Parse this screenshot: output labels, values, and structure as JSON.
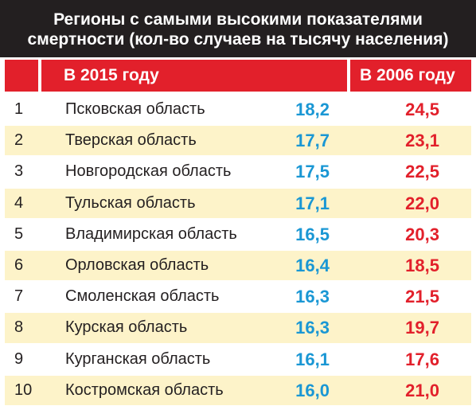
{
  "title": {
    "line1": "Регионы с самыми высокими показателями",
    "line2": "смертности (кол-во случаев на тысячу населения)"
  },
  "colors": {
    "title_bg": "#231f20",
    "header_bg": "#e2202b",
    "row_shade": "#fdf3c9",
    "value_2015": "#1a97d4",
    "value_2006": "#e2202b"
  },
  "chart_data": {
    "type": "table",
    "title": "Регионы с самыми высокими показателями смертности (кол-во случаев на тысячу населения)",
    "columns": [
      "",
      "В 2015 году",
      "В 2006 году"
    ],
    "rows": [
      {
        "rank": "1",
        "region": "Псковская область",
        "v2015": "18,2",
        "v2006": "24,5"
      },
      {
        "rank": "2",
        "region": "Тверская область",
        "v2015": "17,7",
        "v2006": "23,1"
      },
      {
        "rank": "3",
        "region": "Новгородская область",
        "v2015": "17,5",
        "v2006": "22,5"
      },
      {
        "rank": "4",
        "region": "Тульская область",
        "v2015": "17,1",
        "v2006": "22,0"
      },
      {
        "rank": "5",
        "region": "Владимирская область",
        "v2015": "16,5",
        "v2006": "20,3"
      },
      {
        "rank": "6",
        "region": "Орловская область",
        "v2015": "16,4",
        "v2006": "18,5"
      },
      {
        "rank": "7",
        "region": "Смоленская область",
        "v2015": "16,3",
        "v2006": "21,5"
      },
      {
        "rank": "8",
        "region": "Курская область",
        "v2015": "16,3",
        "v2006": "19,7"
      },
      {
        "rank": "9",
        "region": "Курганская область",
        "v2015": "16,1",
        "v2006": "17,6"
      },
      {
        "rank": "10",
        "region": "Костромская область",
        "v2015": "16,0",
        "v2006": "21,0"
      }
    ]
  }
}
